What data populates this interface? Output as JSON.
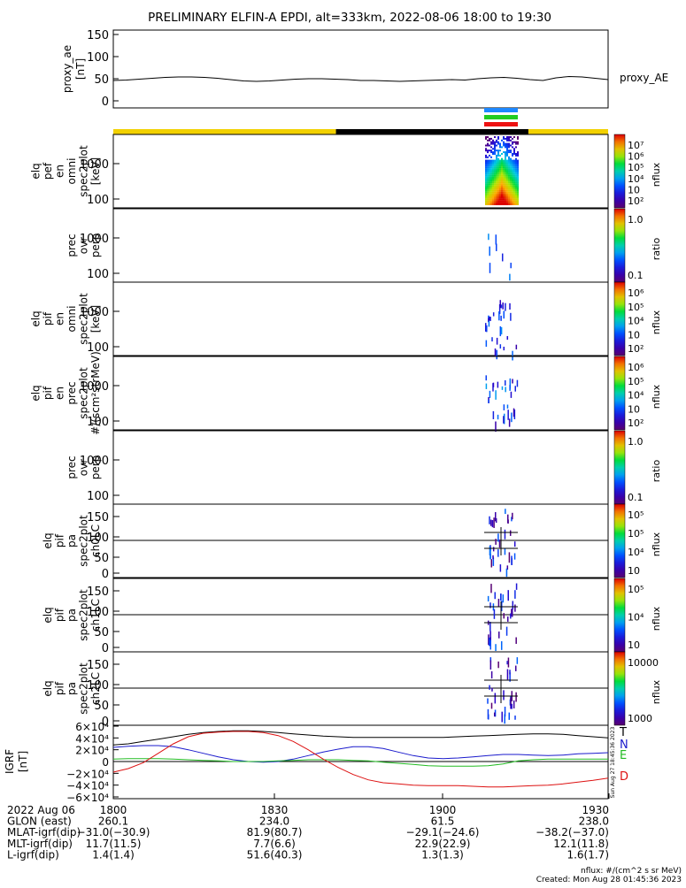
{
  "title": "PRELIMINARY ELFIN-A EPDI, alt=333km, 2022-08-06 18:00 to 19:30",
  "chart_data": {
    "type": "spectrogram-stack",
    "x_range": [
      "2022-08-06 18:00",
      "2022-08-06 19:30"
    ],
    "ae": {
      "ylabel": [
        "proxy_ae",
        "[nT]"
      ],
      "series_name": "proxy_AE",
      "yticks": [
        "150",
        "100",
        "50",
        "0"
      ],
      "ylim": [
        0,
        150
      ],
      "values": [
        46,
        47,
        49,
        51,
        53,
        54,
        54,
        53,
        51,
        48,
        45,
        44,
        45,
        47,
        49,
        50,
        50,
        49,
        48,
        46,
        46,
        45,
        44,
        45,
        46,
        47,
        48,
        47,
        50,
        52,
        53,
        51,
        48,
        46,
        52,
        55,
        54,
        51,
        48
      ],
      "phase_bar_colors": [
        "#f2d100",
        "#000000",
        "#f2d100"
      ],
      "phase_bar_breaks_min": [
        0,
        40.5,
        75.5,
        90
      ],
      "science_bars": [
        "#1e88ff",
        "#22cc22",
        "#ee1111"
      ]
    },
    "panels": [
      {
        "id": "pef-en-omni",
        "labels": [
          "elq",
          "pef",
          "en",
          "omni",
          "spec2plot",
          "[keV]"
        ],
        "yticks": [
          "1000",
          "100"
        ],
        "colorbar": {
          "ticks": [
            "10⁷",
            "10⁶",
            "10⁵",
            "10⁴",
            "10⁳",
            "10²"
          ],
          "unit": "nflux"
        }
      },
      {
        "id": "prec-ovr-perp-1",
        "labels": [
          "prec",
          "ovr",
          "perp"
        ],
        "yticks": [
          "1000",
          "100"
        ],
        "colorbar": {
          "ticks": [
            "1.0",
            "0.1"
          ],
          "unit": "ratio"
        }
      },
      {
        "id": "pif-en-omni",
        "labels": [
          "elq",
          "pif",
          "en",
          "omni",
          "spec2plot",
          "[keV]"
        ],
        "yticks": [
          "1000",
          "100"
        ],
        "colorbar": {
          "ticks": [
            "10⁶",
            "10⁵",
            "10⁴",
            "10⁳",
            "10²"
          ],
          "unit": "nflux"
        }
      },
      {
        "id": "pif-en-prec",
        "labels": [
          "elq",
          "pif",
          "en",
          "prec",
          "spec2plot",
          "#/(scm²strMeV)"
        ],
        "yticks": [
          "1000",
          "100"
        ],
        "colorbar": {
          "ticks": [
            "10⁶",
            "10⁵",
            "10⁴",
            "10⁳",
            "10²"
          ],
          "unit": "nflux"
        }
      },
      {
        "id": "prec-ovr-perp-2",
        "labels": [
          "prec",
          "ovr",
          "perp"
        ],
        "yticks": [
          "1000",
          "100"
        ],
        "colorbar": {
          "ticks": [
            "1.0",
            "0.1"
          ],
          "unit": "ratio"
        }
      },
      {
        "id": "pa-ch0LC",
        "labels": [
          "elq",
          "pif",
          "pa",
          "spec2plot",
          "ch0LC"
        ],
        "yticks": [
          "150",
          "100",
          "50",
          "0"
        ],
        "colorbar": {
          "ticks": [
            "10⁵",
            "10⁵",
            "10⁴",
            "10⁳"
          ],
          "unit": "nflux"
        }
      },
      {
        "id": "pa-ch1LC",
        "labels": [
          "elq",
          "pif",
          "pa",
          "spec2plot",
          "ch1LC"
        ],
        "yticks": [
          "150",
          "100",
          "50",
          "0"
        ],
        "colorbar": {
          "ticks": [
            "10⁵",
            "10⁴",
            "10⁳"
          ],
          "unit": "nflux"
        }
      },
      {
        "id": "pa-ch2LC",
        "labels": [
          "elq",
          "pif",
          "pa",
          "spec2plot",
          "ch2LC"
        ],
        "yticks": [
          "150",
          "100",
          "50",
          "0"
        ],
        "colorbar": {
          "ticks": [
            "10000",
            "1000"
          ],
          "unit": "nflux"
        }
      }
    ],
    "igrf": {
      "ylabel": [
        "IGRF",
        "[nT]"
      ],
      "yticks": [
        "6×10⁴",
        "4×10⁴",
        "2×10⁴",
        "0",
        "−2×10⁴",
        "−4×10⁴",
        "−6×10⁴"
      ],
      "ylim": [
        -60000,
        60000
      ],
      "series": [
        {
          "name": "T",
          "color": "#000000",
          "values": [
            28,
            30,
            34,
            38,
            42,
            46,
            49,
            51,
            52,
            52,
            51,
            49,
            47,
            45,
            43,
            42,
            41,
            41,
            41,
            41,
            41,
            41,
            41,
            42,
            43,
            44,
            45,
            46,
            47,
            47,
            46,
            44,
            42,
            40
          ]
        },
        {
          "name": "N",
          "color": "#1a1acc",
          "values": [
            24,
            26,
            27,
            27,
            25,
            20,
            14,
            8,
            3,
            0,
            -1,
            0,
            4,
            10,
            16,
            21,
            25,
            25,
            22,
            16,
            10,
            6,
            5,
            6,
            8,
            10,
            12,
            12,
            11,
            10,
            11,
            13,
            14,
            15
          ]
        },
        {
          "name": "E",
          "color": "#22bb22",
          "values": [
            4,
            5,
            5,
            5,
            4,
            3,
            2,
            1,
            0,
            0,
            0,
            1,
            2,
            3,
            3,
            3,
            2,
            1,
            -1,
            -3,
            -5,
            -7,
            -8,
            -8,
            -8,
            -7,
            -4,
            1,
            3,
            4,
            4,
            4,
            4,
            4
          ]
        },
        {
          "name": "D",
          "color": "#dd1111",
          "values": [
            -18,
            -12,
            -2,
            14,
            30,
            42,
            48,
            50,
            51,
            51,
            49,
            44,
            34,
            20,
            4,
            -10,
            -22,
            -31,
            -36,
            -38,
            -40,
            -41,
            -41,
            -41,
            -42,
            -43,
            -43,
            -42,
            -41,
            -40,
            -38,
            -35,
            -32,
            -28
          ]
        }
      ],
      "side_text": "Sun Aug 27 18:45:36 2023"
    },
    "axis_table": {
      "rows": [
        {
          "label": "2022 Aug 06",
          "values": [
            "1800",
            "1830",
            "1900",
            "1930"
          ]
        },
        {
          "label": "GLON (east)",
          "values": [
            "260.1",
            "234.0",
            "61.5",
            "238.0"
          ]
        },
        {
          "label": "MLAT-igrf(dip)",
          "values": [
            "−31.0(−30.9)",
            "81.9(80.7)",
            "−29.1(−24.6)",
            "−38.2(−37.0)"
          ]
        },
        {
          "label": "MLT-igrf(dip)",
          "values": [
            "11.7(11.5)",
            "7.7(6.6)",
            "22.9(22.9)",
            "12.1(11.8)"
          ]
        },
        {
          "label": "L-igrf(dip)",
          "values": [
            "1.4(1.4)",
            "51.6(40.3)",
            "1.3(1.3)",
            "1.6(1.7)"
          ]
        }
      ]
    },
    "footer": [
      "nflux: #/(cm^2 s sr MeV)",
      "Created: Mon Aug 28 01:45:36 2023"
    ]
  }
}
